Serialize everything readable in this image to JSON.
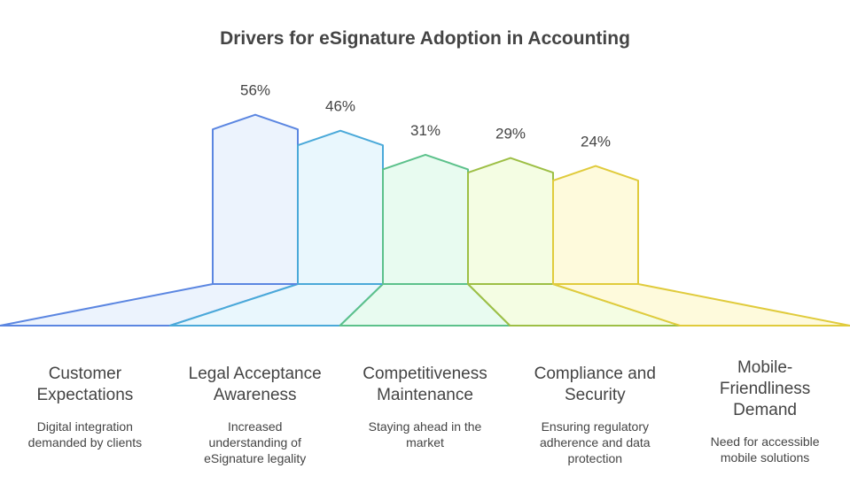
{
  "chart_data": {
    "type": "bar",
    "title": "Drivers for eSignature Adoption in Accounting",
    "categories": [
      "Customer Expectations",
      "Legal Acceptance Awareness",
      "Competitiveness Maintenance",
      "Compliance and Security",
      "Mobile-Friendliness Demand"
    ],
    "values": [
      56,
      46,
      31,
      29,
      24
    ],
    "value_labels": [
      "56%",
      "46%",
      "31%",
      "29%",
      "24%"
    ],
    "descriptions": [
      "Digital integration demanded by clients",
      "Increased understanding of eSignature legality",
      "Staying ahead in the market",
      "Ensuring regulatory adherence and data protection",
      "Need for accessible mobile solutions"
    ],
    "unit": "%",
    "colors": [
      "#5b86e1",
      "#4aa9d9",
      "#5cc18b",
      "#9dbf45",
      "#e0cb3c"
    ],
    "fills": [
      "#ecf3fd",
      "#e9f7fd",
      "#e8fbf0",
      "#f4fde3",
      "#fefadc"
    ]
  }
}
